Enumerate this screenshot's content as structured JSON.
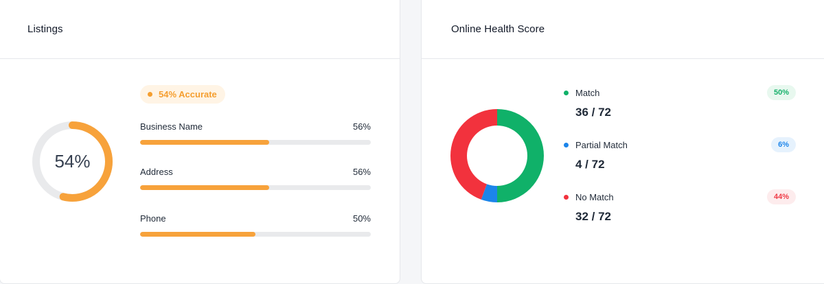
{
  "listings": {
    "title": "Listings",
    "overall_percent": "54%",
    "overall_fraction": 0.54,
    "badge": "54% Accurate",
    "accent_color": "#f7a23b",
    "metrics": [
      {
        "label": "Business Name",
        "value": "56%",
        "fraction": 0.56
      },
      {
        "label": "Address",
        "value": "56%",
        "fraction": 0.56
      },
      {
        "label": "Phone",
        "value": "50%",
        "fraction": 0.5
      }
    ]
  },
  "health": {
    "title": "Online Health Score",
    "items": [
      {
        "label": "Match",
        "count": "36 / 72",
        "percent": "50%",
        "value": 36,
        "color": "#10b169",
        "pill_bg": "#e8f8ef",
        "pill_fg": "#15b06a"
      },
      {
        "label": "Partial Match",
        "count": "4 / 72",
        "percent": "6%",
        "value": 4,
        "color": "#1c85ea",
        "pill_bg": "#e6f2fd",
        "pill_fg": "#1c85ea"
      },
      {
        "label": "No Match",
        "count": "32 / 72",
        "percent": "44%",
        "value": 32,
        "color": "#f2323d",
        "pill_bg": "#fdeced",
        "pill_fg": "#ef3b46"
      }
    ],
    "total": 72
  }
}
